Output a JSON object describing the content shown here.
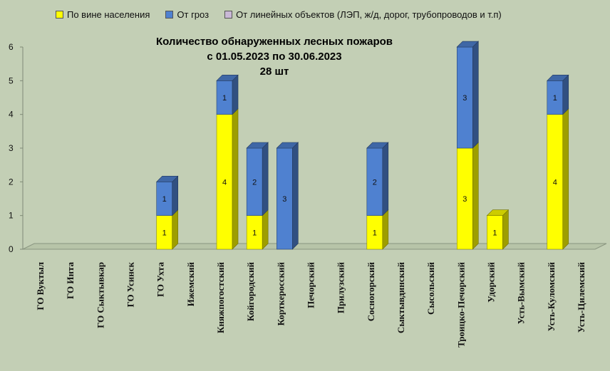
{
  "chart_data": {
    "type": "bar",
    "stacked": true,
    "title_lines": [
      "Количество обнаруженных лесных пожаров",
      "с 01.05.2023  по  30.06.2023",
      "28 шт"
    ],
    "categories": [
      "ГО Вуктыл",
      "ГО Инта",
      "ГО Сыктывкар",
      "ГО Усинск",
      "ГО Ухта",
      "Ижемский",
      "Княжпогостский",
      "Койгородский",
      "Корткеросский",
      "Печорский",
      "Прилузский",
      "Сосногорский",
      "Сыктывдинский",
      "Сысольский",
      "Троицко-Печорский",
      "Удорский",
      "Усть-Вымский",
      "Усть-Куломский",
      "Усть-Цилемский"
    ],
    "series": [
      {
        "name": "По вине населения",
        "color": "#ffff00",
        "values": [
          0,
          0,
          0,
          0,
          1,
          0,
          4,
          1,
          0,
          0,
          0,
          1,
          0,
          0,
          3,
          1,
          0,
          4,
          0
        ]
      },
      {
        "name": "От гроз",
        "color": "#4f81d0",
        "values": [
          0,
          0,
          0,
          0,
          1,
          0,
          1,
          2,
          3,
          0,
          0,
          2,
          0,
          0,
          3,
          0,
          0,
          1,
          0
        ]
      },
      {
        "name": "От линейных объектов (ЛЭП, ж/д, дорог, трубопроводов  и т.п)",
        "color": "#c9b8d6",
        "values": [
          0,
          0,
          0,
          0,
          0,
          0,
          0,
          0,
          0,
          0,
          0,
          0,
          0,
          0,
          0,
          0,
          0,
          0,
          0
        ]
      }
    ],
    "ylim": [
      0,
      6
    ],
    "yticks": [
      "0",
      "1",
      "2",
      "3",
      "4",
      "5",
      "6"
    ],
    "legend_position": "top",
    "grid": false
  }
}
